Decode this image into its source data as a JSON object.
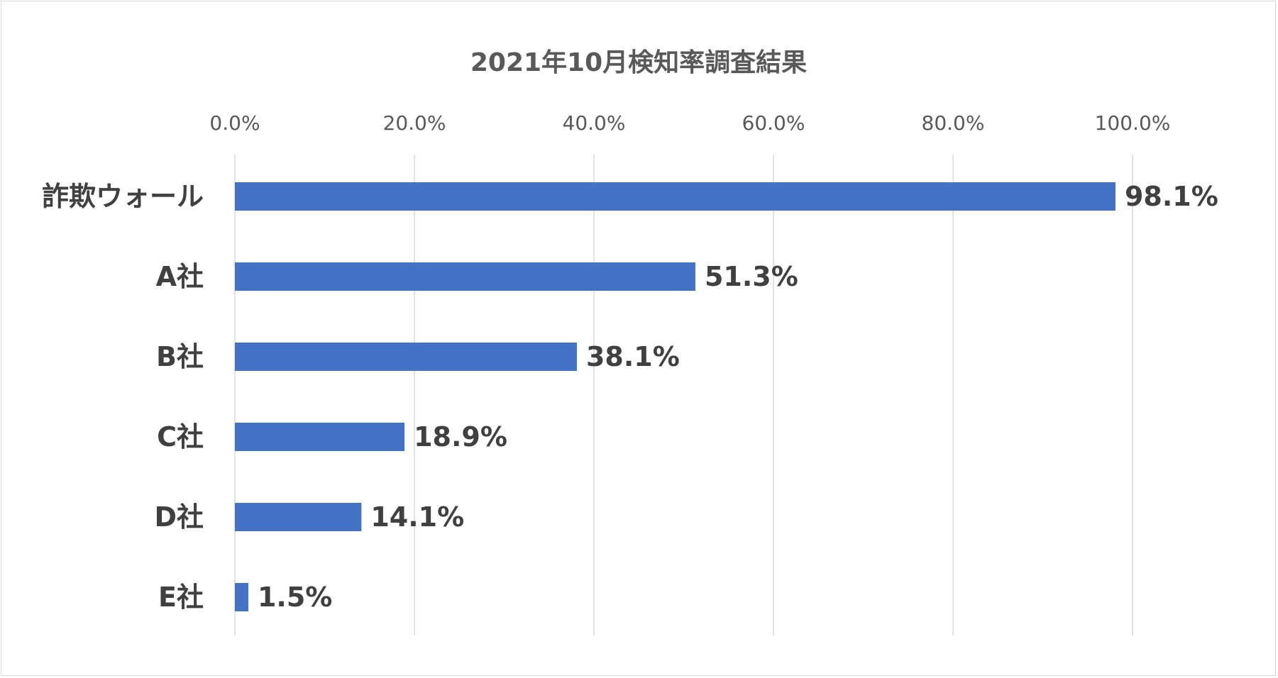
{
  "chart_data": {
    "type": "bar",
    "orientation": "horizontal",
    "title": "2021年10月検知率調査結果",
    "categories": [
      "詐欺ウォール",
      "A社",
      "B社",
      "C社",
      "D社",
      "E社"
    ],
    "values": [
      98.1,
      51.3,
      38.1,
      18.9,
      14.1,
      1.5
    ],
    "data_labels": [
      "98.1%",
      "51.3%",
      "38.1%",
      "18.9%",
      "14.1%",
      "1.5%"
    ],
    "xlim": [
      0,
      100
    ],
    "x_ticks": [
      0,
      20,
      40,
      60,
      80,
      100
    ],
    "x_tick_labels": [
      "0.0%",
      "20.0%",
      "40.0%",
      "60.0%",
      "80.0%",
      "100.0%"
    ],
    "x_axis_position": "top",
    "grid": true,
    "bar_color": "#4472C4",
    "text_color": "#404040",
    "gridline_color": "#D9D9D9"
  }
}
